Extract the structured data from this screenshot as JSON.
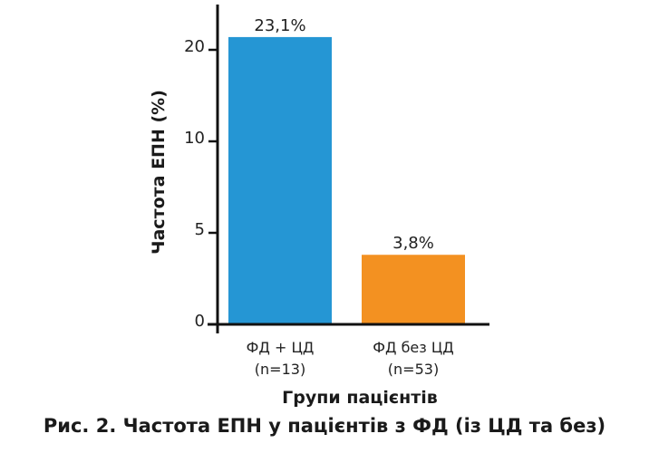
{
  "chart_data": {
    "type": "bar",
    "title": "",
    "xlabel": "Групи пацієнтів",
    "ylabel": "Частота ЕПН (%)",
    "categories": [
      {
        "line1": "ФД + ЦД",
        "line2": "(n=13)"
      },
      {
        "line1": "ФД без ЦД",
        "line2": "(n=53)"
      }
    ],
    "values": [
      23.1,
      3.8
    ],
    "data_labels": [
      "23,1%",
      "3,8%"
    ],
    "colors": [
      "#2596d4",
      "#f39121"
    ],
    "yticks": [
      0,
      5,
      10,
      20
    ],
    "ytick_labels": [
      "0",
      "5",
      "10",
      "20"
    ],
    "y_scale": "non-uniform (ticks equally spaced)",
    "grid": false
  },
  "caption": "Рис. 2. Частота ЕПН у пацієнтів з ФД (із ЦД та без)"
}
